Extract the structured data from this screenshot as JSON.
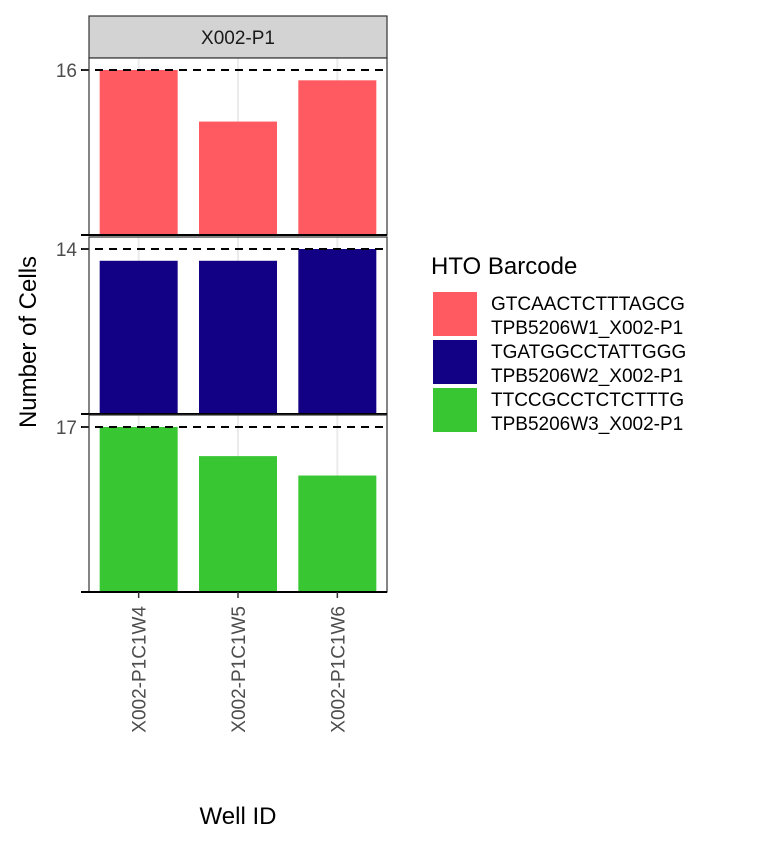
{
  "chart_data": {
    "type": "bar",
    "facet_label": "X002-P1",
    "categories": [
      "X002-P1C1W4",
      "X002-P1C1W5",
      "X002-P1C1W6"
    ],
    "xlabel": "Well ID",
    "ylabel": "Number of Cells",
    "legend": {
      "title": "HTO Barcode",
      "position": "right",
      "entries": [
        {
          "line1": "GTCAACTCTTTAGCG",
          "line2": "TPB5206W1_X002-P1",
          "color": "#FF5A62"
        },
        {
          "line1": "TGATGGCCTATTGGG",
          "line2": "TPB5206W2_X002-P1",
          "color": "#120085"
        },
        {
          "line1": "TTCCGCCTCTCTTTG",
          "line2": "TPB5206W3_X002-P1",
          "color": "#38C633"
        }
      ]
    },
    "panels": [
      {
        "series": "GTCAACTCTTTAGCG TPB5206W1_X002-P1",
        "color": "#FF5A62",
        "max_label": "16",
        "max": 16,
        "values": [
          16,
          11,
          15
        ]
      },
      {
        "series": "TGATGGCCTATTGGG TPB5206W2_X002-P1",
        "color": "#120085",
        "max_label": "14",
        "max": 14,
        "values": [
          13,
          13,
          14
        ]
      },
      {
        "series": "TTCCGCCTCTCTTTG TPB5206W3_X002-P1",
        "color": "#38C633",
        "max_label": "17",
        "max": 17,
        "values": [
          17,
          14,
          12
        ]
      }
    ],
    "grid": true,
    "reference_line": "dashed line at panel maximum"
  }
}
